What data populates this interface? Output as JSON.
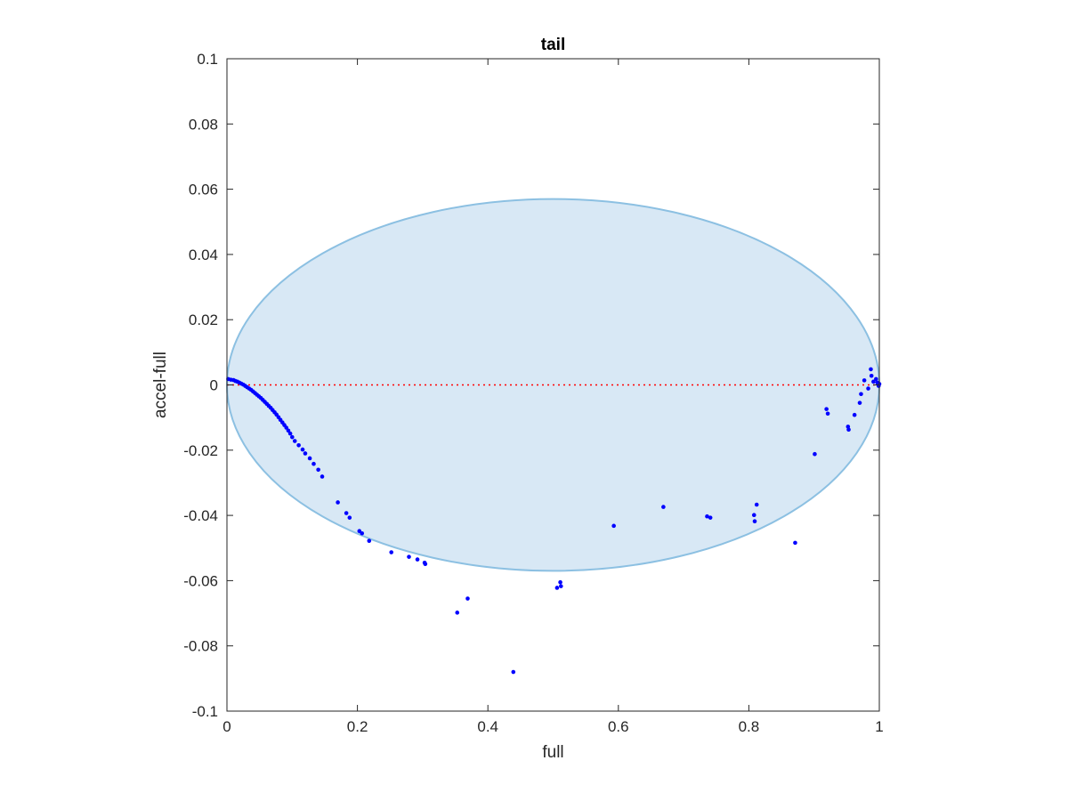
{
  "chart_data": {
    "type": "scatter",
    "title": "tail",
    "xlabel": "full",
    "ylabel": "accel-full",
    "xlim": [
      0,
      1
    ],
    "ylim": [
      -0.1,
      0.1
    ],
    "x_ticks": [
      "0",
      "0.2",
      "0.4",
      "0.6",
      "0.8",
      "1"
    ],
    "y_ticks": [
      "0.1",
      "0.08",
      "0.06",
      "0.04",
      "0.02",
      "0",
      "-0.02",
      "-0.04",
      "-0.06",
      "-0.08",
      "-0.1"
    ],
    "x_tick_values": [
      0,
      0.2,
      0.4,
      0.6,
      0.8,
      1
    ],
    "y_tick_values": [
      0.1,
      0.08,
      0.06,
      0.04,
      0.02,
      0,
      -0.02,
      -0.04,
      -0.06,
      -0.08,
      -0.1
    ],
    "grid": false,
    "reference_line": {
      "y": 0,
      "style": "dotted",
      "color": "#ff0000"
    },
    "ellipse": {
      "center": [
        0.5,
        0
      ],
      "radius_x": 0.5,
      "radius_y": 0.057,
      "fill": "#d8e8f5",
      "stroke": "#8cc0e2"
    },
    "point_color": "#0000ff",
    "points": [
      [
        0.002,
        0.0018
      ],
      [
        0.006,
        0.0016
      ],
      [
        0.01,
        0.0015
      ],
      [
        0.013,
        0.0012
      ],
      [
        0.016,
        0.001
      ],
      [
        0.019,
        0.0007
      ],
      [
        0.022,
        0.0004
      ],
      [
        0.025,
        0.0001
      ],
      [
        0.028,
        -0.0003
      ],
      [
        0.031,
        -0.0007
      ],
      [
        0.034,
        -0.0011
      ],
      [
        0.037,
        -0.0015
      ],
      [
        0.04,
        -0.002
      ],
      [
        0.043,
        -0.0025
      ],
      [
        0.046,
        -0.003
      ],
      [
        0.049,
        -0.0035
      ],
      [
        0.052,
        -0.004
      ],
      [
        0.055,
        -0.0046
      ],
      [
        0.058,
        -0.0052
      ],
      [
        0.061,
        -0.0058
      ],
      [
        0.064,
        -0.0064
      ],
      [
        0.067,
        -0.007
      ],
      [
        0.07,
        -0.0077
      ],
      [
        0.073,
        -0.0084
      ],
      [
        0.076,
        -0.0091
      ],
      [
        0.079,
        -0.0099
      ],
      [
        0.082,
        -0.0107
      ],
      [
        0.085,
        -0.0115
      ],
      [
        0.088,
        -0.0123
      ],
      [
        0.091,
        -0.0131
      ],
      [
        0.094,
        -0.014
      ],
      [
        0.097,
        -0.0149
      ],
      [
        0.1,
        -0.016
      ],
      [
        0.104,
        -0.0172
      ],
      [
        0.11,
        -0.0185
      ],
      [
        0.116,
        -0.0198
      ],
      [
        0.12,
        -0.021
      ],
      [
        0.127,
        -0.0225
      ],
      [
        0.133,
        -0.0242
      ],
      [
        0.14,
        -0.026
      ],
      [
        0.146,
        -0.0281
      ],
      [
        0.17,
        -0.036
      ],
      [
        0.183,
        -0.0393
      ],
      [
        0.188,
        -0.0407
      ],
      [
        0.203,
        -0.0448
      ],
      [
        0.207,
        -0.0455
      ],
      [
        0.218,
        -0.0478
      ],
      [
        0.252,
        -0.0513
      ],
      [
        0.279,
        -0.0527
      ],
      [
        0.292,
        -0.0535
      ],
      [
        0.303,
        -0.0545
      ],
      [
        0.304,
        -0.0549
      ],
      [
        0.353,
        -0.0698
      ],
      [
        0.369,
        -0.0655
      ],
      [
        0.439,
        -0.088
      ],
      [
        0.506,
        -0.0622
      ],
      [
        0.511,
        -0.0605
      ],
      [
        0.512,
        -0.0617
      ],
      [
        0.593,
        -0.0432
      ],
      [
        0.669,
        -0.0374
      ],
      [
        0.736,
        -0.0403
      ],
      [
        0.741,
        -0.0407
      ],
      [
        0.808,
        -0.0399
      ],
      [
        0.809,
        -0.0418
      ],
      [
        0.812,
        -0.0367
      ],
      [
        0.871,
        -0.0484
      ],
      [
        0.901,
        -0.0212
      ],
      [
        0.919,
        -0.0074
      ],
      [
        0.921,
        -0.0088
      ],
      [
        0.952,
        -0.0128
      ],
      [
        0.953,
        -0.0137
      ],
      [
        0.962,
        -0.0092
      ],
      [
        0.97,
        -0.0055
      ],
      [
        0.972,
        -0.0028
      ],
      [
        0.977,
        0.0014
      ],
      [
        0.983,
        -0.0011
      ],
      [
        0.987,
        0.0048
      ],
      [
        0.988,
        0.0028
      ],
      [
        0.991,
        0.001
      ],
      [
        0.995,
        0.0018
      ],
      [
        0.997,
        0.0007
      ],
      [
        0.998,
        0.0002
      ],
      [
        0.999,
        -0.0003
      ],
      [
        1.0,
        0.0003
      ]
    ]
  }
}
